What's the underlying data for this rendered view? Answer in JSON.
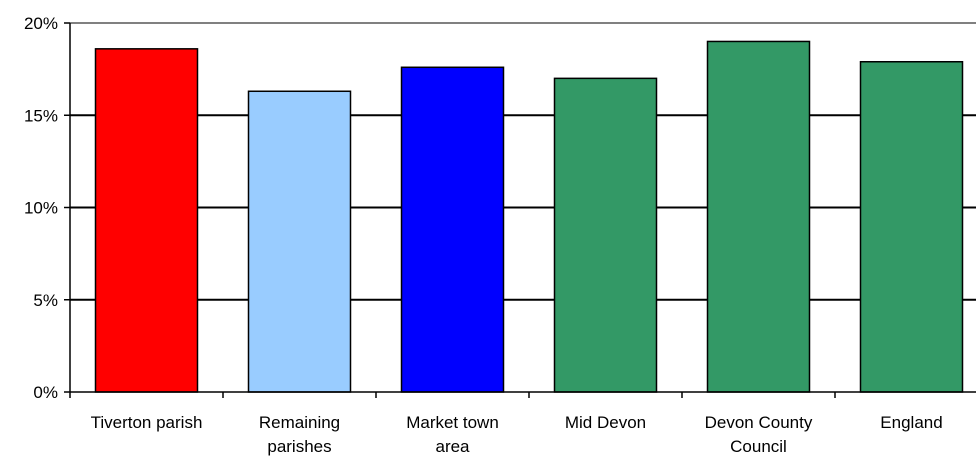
{
  "chart_data": {
    "type": "bar",
    "title": "",
    "xlabel": "",
    "ylabel": "",
    "ylim": [
      0,
      20
    ],
    "y_format": "percent",
    "yticks": [
      "0%",
      "5%",
      "10%",
      "15%",
      "20%"
    ],
    "grid": true,
    "legend": "none",
    "categories": [
      [
        "Tiverton parish"
      ],
      [
        "Remaining",
        "parishes"
      ],
      [
        "Market town",
        "area"
      ],
      [
        "Mid Devon"
      ],
      [
        "Devon County",
        "Council"
      ],
      [
        "England"
      ]
    ],
    "values": [
      18.6,
      16.3,
      17.6,
      17.0,
      19.0,
      17.9
    ],
    "colors": [
      "#ff0000",
      "#99ccff",
      "#0000ff",
      "#339966",
      "#339966",
      "#339966"
    ]
  }
}
